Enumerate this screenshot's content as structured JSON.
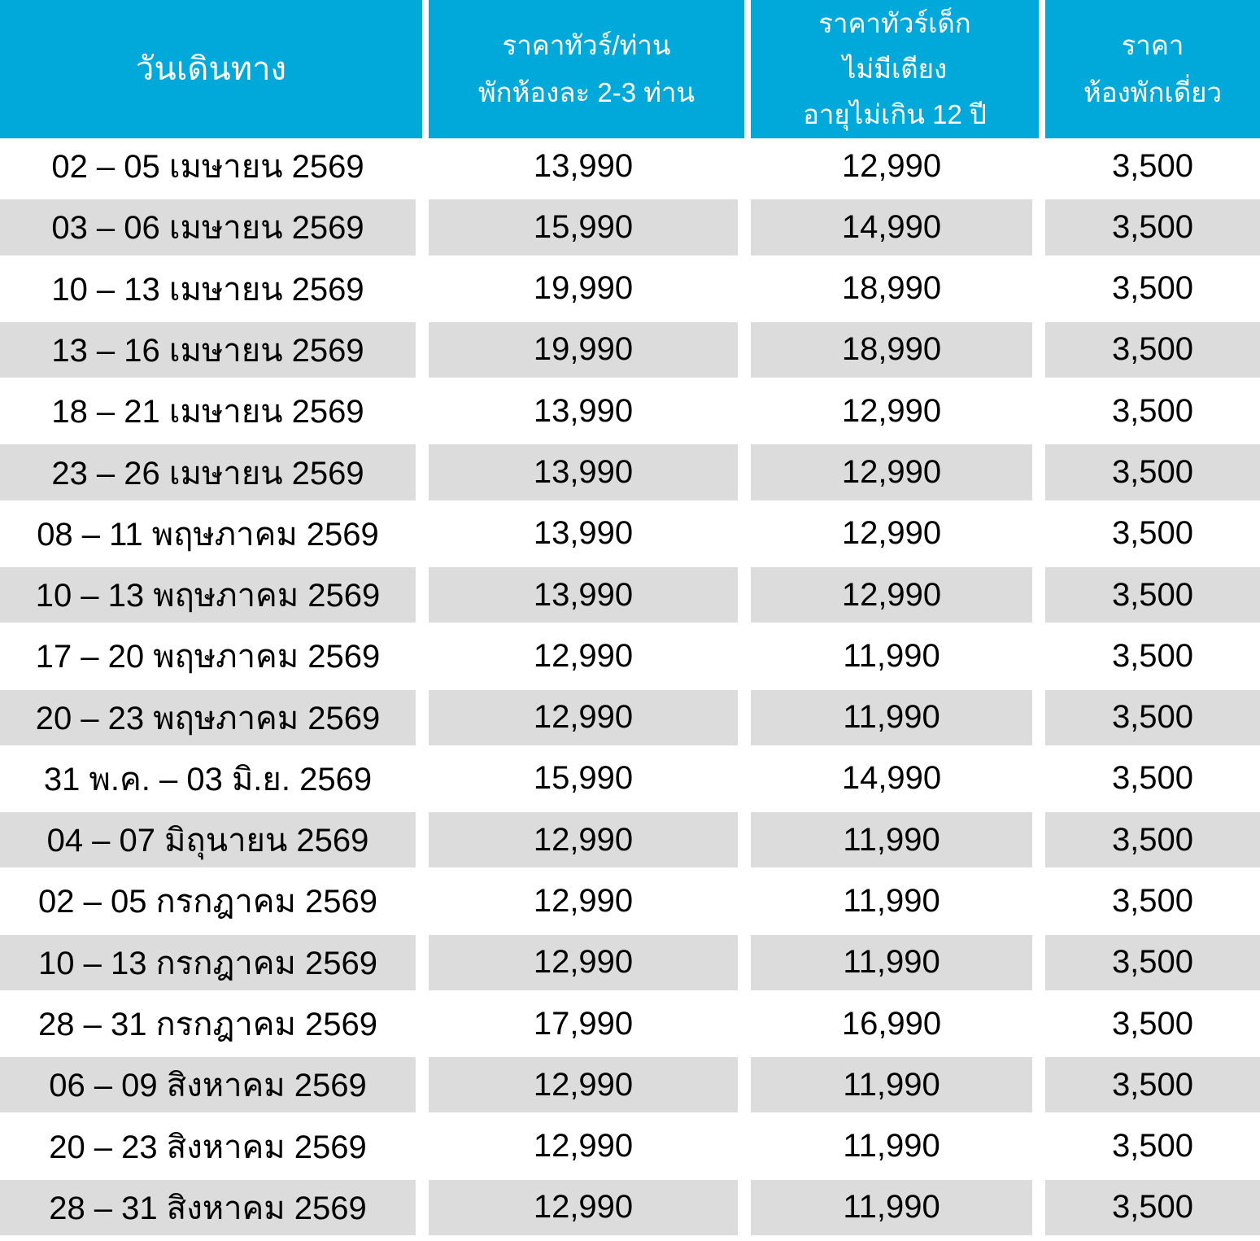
{
  "header": {
    "travel_date": "วันเดินทาง",
    "adult_price_lines": [
      "ราคาทัวร์/ท่าน",
      "พักห้องละ 2-3 ท่าน"
    ],
    "child_price_lines": [
      "ราคาทัวร์เด็ก",
      "ไม่มีเตียง",
      "อายุไม่เกิน 12 ปี"
    ],
    "single_room_lines": [
      "ราคา",
      "ห้องพักเดี่ยว"
    ]
  },
  "rows": [
    {
      "date": "02 – 05 เมษายน 2569",
      "adult": "13,990",
      "child": "12,990",
      "single": "3,500"
    },
    {
      "date": "03 – 06 เมษายน 2569",
      "adult": "15,990",
      "child": "14,990",
      "single": "3,500"
    },
    {
      "date": "10 – 13 เมษายน 2569",
      "adult": "19,990",
      "child": "18,990",
      "single": "3,500"
    },
    {
      "date": "13 – 16 เมษายน 2569",
      "adult": "19,990",
      "child": "18,990",
      "single": "3,500"
    },
    {
      "date": "18 – 21 เมษายน 2569",
      "adult": "13,990",
      "child": "12,990",
      "single": "3,500"
    },
    {
      "date": "23 – 26 เมษายน 2569",
      "adult": "13,990",
      "child": "12,990",
      "single": "3,500"
    },
    {
      "date": "08 – 11 พฤษภาคม 2569",
      "adult": "13,990",
      "child": "12,990",
      "single": "3,500"
    },
    {
      "date": "10 – 13 พฤษภาคม 2569",
      "adult": "13,990",
      "child": "12,990",
      "single": "3,500"
    },
    {
      "date": "17 – 20 พฤษภาคม 2569",
      "adult": "12,990",
      "child": "11,990",
      "single": "3,500"
    },
    {
      "date": "20 – 23 พฤษภาคม 2569",
      "adult": "12,990",
      "child": "11,990",
      "single": "3,500"
    },
    {
      "date": "31 พ.ค. – 03 มิ.ย. 2569",
      "adult": "15,990",
      "child": "14,990",
      "single": "3,500"
    },
    {
      "date": "04 – 07 มิถุนายน 2569",
      "adult": "12,990",
      "child": "11,990",
      "single": "3,500"
    },
    {
      "date": "02 – 05 กรกฎาคม 2569",
      "adult": "12,990",
      "child": "11,990",
      "single": "3,500"
    },
    {
      "date": "10 – 13 กรกฎาคม 2569",
      "adult": "12,990",
      "child": "11,990",
      "single": "3,500"
    },
    {
      "date": "28 – 31 กรกฎาคม 2569",
      "adult": "17,990",
      "child": "16,990",
      "single": "3,500"
    },
    {
      "date": "06 – 09 สิงหาคม 2569",
      "adult": "12,990",
      "child": "11,990",
      "single": "3,500"
    },
    {
      "date": "20 – 23 สิงหาคม 2569",
      "adult": "12,990",
      "child": "11,990",
      "single": "3,500"
    },
    {
      "date": "28 – 31 สิงหาคม 2569",
      "adult": "12,990",
      "child": "11,990",
      "single": "3,500"
    }
  ],
  "colors": {
    "header_bg": "#00A9DA",
    "header_text": "#FFFFFF",
    "alt_row_bg": "#DCDCDC",
    "row_bg": "#FFFFFF",
    "body_text": "#000000"
  }
}
